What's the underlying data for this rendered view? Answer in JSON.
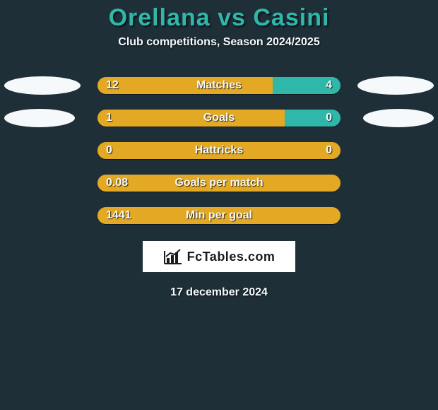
{
  "background_color": "#1e2f38",
  "title": {
    "text": "Orellana vs Casini",
    "color": "#2fb7aa",
    "fontsize": 34
  },
  "subtitle": {
    "text": "Club competitions, Season 2024/2025",
    "color": "#f5f9fb",
    "fontsize": 16
  },
  "bar_style": {
    "left_color": "#e4a924",
    "right_color": "#2fb7aa",
    "label_color": "#f5f9fb",
    "label_fontsize": 16,
    "value_fontsize": 16,
    "track_width": 344,
    "track_height": 24
  },
  "blob_style": {
    "color": "#f5f9fb",
    "width_large": 108,
    "width_small": 100
  },
  "rows": [
    {
      "label": "Matches",
      "left_val": "12",
      "right_val": "4",
      "left_pct": 72,
      "right_pct": 28,
      "show_blobs": true,
      "blob_size": "large"
    },
    {
      "label": "Goals",
      "left_val": "1",
      "right_val": "0",
      "left_pct": 77,
      "right_pct": 23,
      "show_blobs": true,
      "blob_size": "small"
    },
    {
      "label": "Hattricks",
      "left_val": "0",
      "right_val": "0",
      "left_pct": 100,
      "right_pct": 0,
      "show_blobs": false
    },
    {
      "label": "Goals per match",
      "left_val": "0.08",
      "right_val": "",
      "left_pct": 100,
      "right_pct": 0,
      "show_blobs": false
    },
    {
      "label": "Min per goal",
      "left_val": "1441",
      "right_val": "",
      "left_pct": 100,
      "right_pct": 0,
      "show_blobs": false
    }
  ],
  "logo": {
    "bg": "#ffffff",
    "text": "FcTables.com",
    "text_color": "#1b1b1b",
    "fontsize": 18,
    "icon_color": "#1b1b1b"
  },
  "date": {
    "text": "17 december 2024",
    "fontsize": 16
  }
}
